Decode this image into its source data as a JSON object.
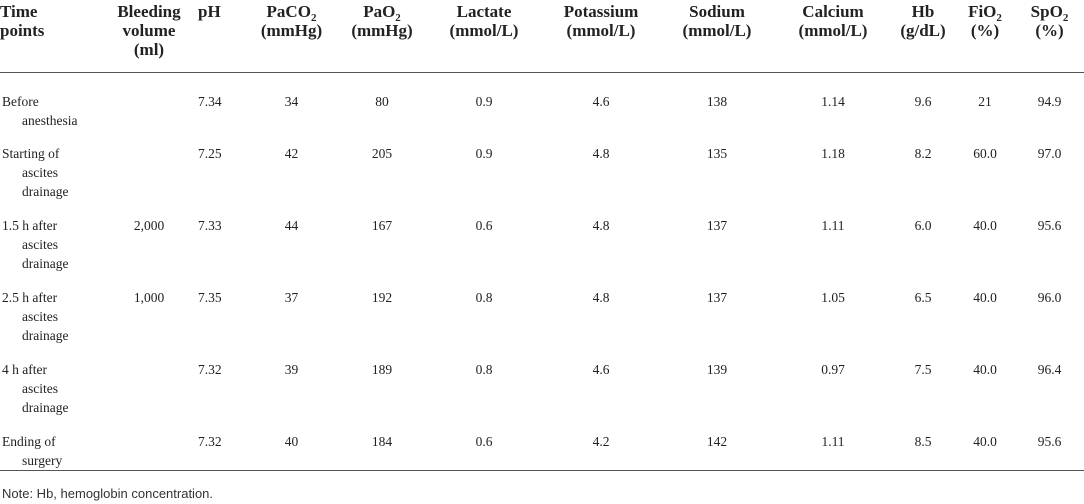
{
  "headers": {
    "time_points": [
      "Time",
      "points"
    ],
    "bleeding": [
      "Bleeding",
      "volume",
      "(ml)"
    ],
    "ph": "pH",
    "paco2": {
      "a": "PaCO",
      "sub": "2",
      "unit": "(mmHg)"
    },
    "pao2": {
      "a": "PaO",
      "sub": "2",
      "unit": "(mmHg)"
    },
    "lactate": {
      "name": "Lactate",
      "unit": "(mmol/L)"
    },
    "potassium": {
      "name": "Potassium",
      "unit": "(mmol/L)"
    },
    "sodium": {
      "name": "Sodium",
      "unit": "(mmol/L)"
    },
    "calcium": {
      "name": "Calcium",
      "unit": "(mmol/L)"
    },
    "hb": {
      "name": "Hb",
      "unit": "(g/dL)"
    },
    "fio2": {
      "a": "FiO",
      "sub": "2",
      "unit": "(%)"
    },
    "spo2": {
      "a": "SpO",
      "sub": "2",
      "unit": "(%)"
    }
  },
  "rows": [
    {
      "time": [
        "Before",
        "anesthesia"
      ],
      "bleeding": "",
      "ph": "7.34",
      "paco2": "34",
      "pao2": "80",
      "lactate": "0.9",
      "potassium": "4.6",
      "sodium": "138",
      "calcium": "1.14",
      "hb": "9.6",
      "fio2": "21",
      "spo2": "94.9"
    },
    {
      "time": [
        "Starting of",
        "ascites",
        "drainage"
      ],
      "bleeding": "",
      "ph": "7.25",
      "paco2": "42",
      "pao2": "205",
      "lactate": "0.9",
      "potassium": "4.8",
      "sodium": "135",
      "calcium": "1.18",
      "hb": "8.2",
      "fio2": "60.0",
      "spo2": "97.0"
    },
    {
      "time": [
        "1.5 h after",
        "ascites",
        "drainage"
      ],
      "bleeding": "2,000",
      "ph": "7.33",
      "paco2": "44",
      "pao2": "167",
      "lactate": "0.6",
      "potassium": "4.8",
      "sodium": "137",
      "calcium": "1.11",
      "hb": "6.0",
      "fio2": "40.0",
      "spo2": "95.6"
    },
    {
      "time": [
        "2.5 h after",
        "ascites",
        "drainage"
      ],
      "bleeding": "1,000",
      "ph": "7.35",
      "paco2": "37",
      "pao2": "192",
      "lactate": "0.8",
      "potassium": "4.8",
      "sodium": "137",
      "calcium": "1.05",
      "hb": "6.5",
      "fio2": "40.0",
      "spo2": "96.0"
    },
    {
      "time": [
        "4 h after",
        "ascites",
        "drainage"
      ],
      "bleeding": "",
      "ph": "7.32",
      "paco2": "39",
      "pao2": "189",
      "lactate": "0.8",
      "potassium": "4.6",
      "sodium": "139",
      "calcium": "0.97",
      "hb": "7.5",
      "fio2": "40.0",
      "spo2": "96.4"
    },
    {
      "time": [
        "Ending of",
        "surgery"
      ],
      "bleeding": "",
      "ph": "7.32",
      "paco2": "40",
      "pao2": "184",
      "lactate": "0.6",
      "potassium": "4.2",
      "sodium": "142",
      "calcium": "1.11",
      "hb": "8.5",
      "fio2": "40.0",
      "spo2": "95.6"
    }
  ],
  "note": "Note: Hb, hemoglobin concentration."
}
